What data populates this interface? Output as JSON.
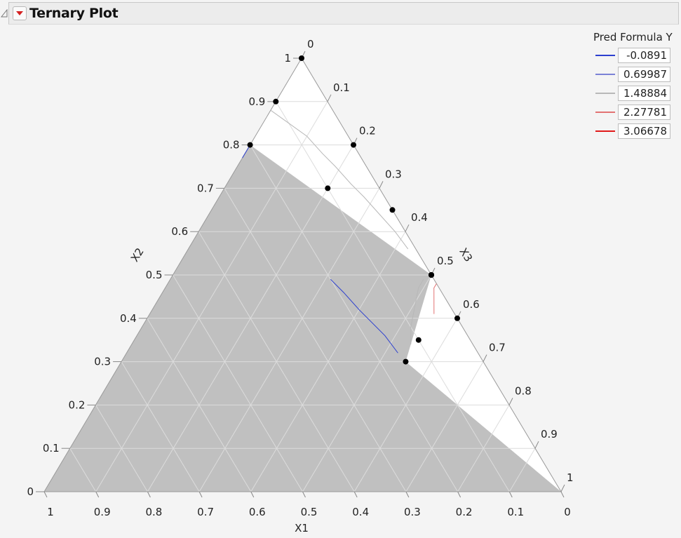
{
  "header": {
    "title": "Ternary Plot"
  },
  "icons": {
    "collapse": "collapse-triangle-icon",
    "menu": "red-dropdown-menu-icon"
  },
  "colors": {
    "feasible_region": "#ffffff",
    "infeasible_region": "#c0c0c0",
    "grid": "#dcdcdc",
    "axis": "#9a9a9a",
    "points": "#000000"
  },
  "chart_data": {
    "type": "scatter",
    "subtype": "ternary",
    "title": "Ternary Plot",
    "axes": {
      "bottom": {
        "label": "X1",
        "ticks": [
          "1",
          "0.9",
          "0.8",
          "0.7",
          "0.6",
          "0.5",
          "0.4",
          "0.3",
          "0.2",
          "0.1",
          "0"
        ]
      },
      "left": {
        "label": "X2",
        "ticks": [
          "0",
          "0.1",
          "0.2",
          "0.3",
          "0.4",
          "0.5",
          "0.6",
          "0.7",
          "0.8",
          "0.9",
          "1"
        ]
      },
      "right": {
        "label": "X3",
        "ticks": [
          "0",
          "0.1",
          "0.2",
          "0.3",
          "0.4",
          "0.5",
          "0.6",
          "0.7",
          "0.8",
          "0.9",
          "1"
        ]
      }
    },
    "grid": true,
    "feasible_region": [
      {
        "X1": 0.0,
        "X2": 1.0,
        "X3": 0.0
      },
      {
        "X1": 0.2,
        "X2": 0.8,
        "X3": 0.0
      },
      {
        "X1": 0.0,
        "X2": 0.5,
        "X3": 0.5
      },
      {
        "X1": 0.15,
        "X2": 0.3,
        "X3": 0.55
      },
      {
        "X1": 0.0,
        "X2": 0.0,
        "X3": 1.0
      },
      {
        "X1": 0.0,
        "X2": 0.0,
        "X3": 1.0
      }
    ],
    "points": [
      {
        "X1": 0.0,
        "X2": 1.0,
        "X3": 0.0
      },
      {
        "X1": 0.1,
        "X2": 0.9,
        "X3": 0.0
      },
      {
        "X1": 0.2,
        "X2": 0.8,
        "X3": 0.0
      },
      {
        "X1": 0.0,
        "X2": 0.8,
        "X3": 0.2
      },
      {
        "X1": 0.1,
        "X2": 0.7,
        "X3": 0.2
      },
      {
        "X1": 0.0,
        "X2": 0.65,
        "X3": 0.35
      },
      {
        "X1": 0.0,
        "X2": 0.5,
        "X3": 0.5
      },
      {
        "X1": 0.0,
        "X2": 0.5,
        "X3": 0.5
      },
      {
        "X1": 0.0,
        "X2": 0.5,
        "X3": 0.5
      },
      {
        "X1": 0.0,
        "X2": 0.4,
        "X3": 0.6
      },
      {
        "X1": 0.1,
        "X2": 0.35,
        "X3": 0.55
      },
      {
        "X1": 0.15,
        "X2": 0.3,
        "X3": 0.55
      }
    ],
    "legend": {
      "title": "Pred Formula Y",
      "placement": "top-right",
      "entries": [
        {
          "label": "-0.0891",
          "color": "#2c3fcf"
        },
        {
          "label": "0.69987",
          "color": "#7b82d6"
        },
        {
          "label": "1.48884",
          "color": "#b8b8b8"
        },
        {
          "label": "2.27781",
          "color": "#e27272"
        },
        {
          "label": "3.06678",
          "color": "#e01a1a"
        }
      ]
    }
  }
}
